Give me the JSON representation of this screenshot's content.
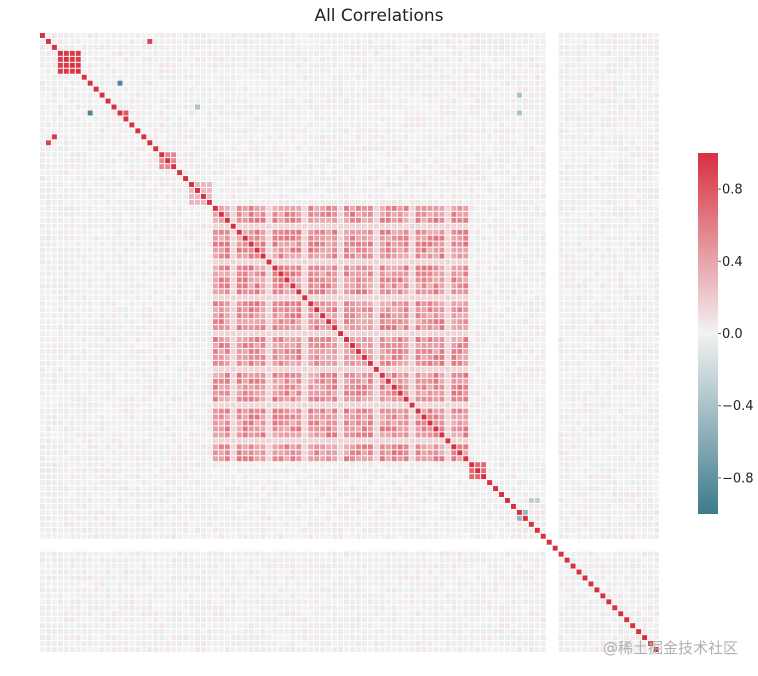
{
  "chart_data": {
    "type": "heatmap",
    "title": "All Correlations",
    "matrix_size": 104,
    "value_range": [
      -1.0,
      1.0
    ],
    "colormap": {
      "negative": "#3d7a8c",
      "zero": "#f2f2f2",
      "positive": "#d7303f"
    },
    "colorbar": {
      "ticks": [
        {
          "value": 0.8,
          "label": "0.8"
        },
        {
          "value": 0.4,
          "label": "0.4"
        },
        {
          "value": 0.0,
          "label": "0.0"
        },
        {
          "value": -0.4,
          "label": "−0.4"
        },
        {
          "value": -0.8,
          "label": "−0.8"
        }
      ]
    },
    "diagonal_value": 1.0,
    "blocks": [
      {
        "rows": [
          3,
          6
        ],
        "cols": [
          3,
          6
        ],
        "value": 0.95
      },
      {
        "rows": [
          29,
          71
        ],
        "cols": [
          29,
          71
        ],
        "value": 0.6,
        "pattern": "gridded"
      },
      {
        "rows": [
          72,
          74
        ],
        "cols": [
          72,
          74
        ],
        "value": 0.7
      },
      {
        "rows": [
          25,
          28
        ],
        "cols": [
          25,
          28
        ],
        "value": 0.3
      },
      {
        "rows": [
          20,
          22
        ],
        "cols": [
          20,
          22
        ],
        "value": 0.55
      }
    ],
    "strong_cells": [
      {
        "row": 1,
        "col": 18,
        "value": 0.9
      },
      {
        "row": 18,
        "col": 1,
        "value": 0.9
      },
      {
        "row": 17,
        "col": 2,
        "value": 0.95
      },
      {
        "row": 13,
        "col": 8,
        "value": -0.9
      },
      {
        "row": 8,
        "col": 13,
        "value": -0.9
      },
      {
        "row": 13,
        "col": 14,
        "value": 0.8
      },
      {
        "row": 12,
        "col": 26,
        "value": -0.4
      },
      {
        "row": 80,
        "col": 81,
        "value": -0.5
      },
      {
        "row": 81,
        "col": 80,
        "value": -0.5
      },
      {
        "row": 10,
        "col": 80,
        "value": -0.4
      },
      {
        "row": 13,
        "col": 80,
        "value": -0.4
      },
      {
        "row": 78,
        "col": 82,
        "value": -0.3
      },
      {
        "row": 78,
        "col": 83,
        "value": -0.3
      }
    ],
    "empty_rows": [
      85,
      86
    ],
    "empty_cols": [
      85,
      86
    ]
  },
  "watermark": "@稀土掘金技术社区"
}
